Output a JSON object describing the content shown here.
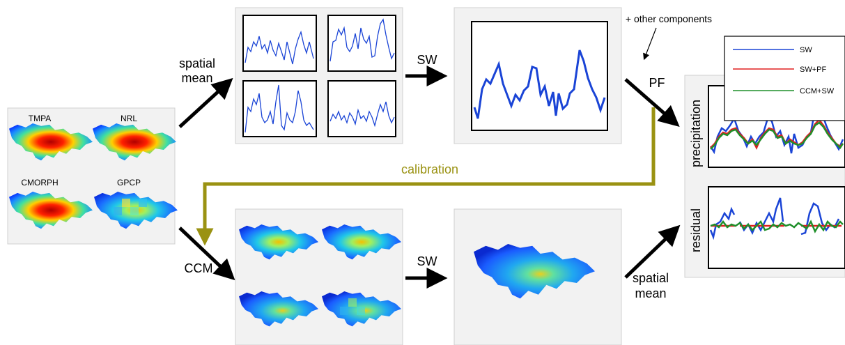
{
  "inputs": {
    "products": [
      "TMPA",
      "NRL",
      "CMORPH",
      "GPCP"
    ]
  },
  "labels": {
    "spatial_mean_top_1": "spatial",
    "spatial_mean_top_2": "mean",
    "sw_top": "SW",
    "sw_bottom": "SW",
    "pf": "PF",
    "other_components": "+ other components",
    "calibration": "calibration",
    "ccm": "CCM",
    "spatial_mean_bottom_1": "spatial",
    "spatial_mean_bottom_2": "mean",
    "precipitation_axis": "precipitation",
    "residual_axis": "residual"
  },
  "legend": {
    "entries": [
      {
        "label": "SW",
        "color": "#1a44d6"
      },
      {
        "label": "SW+PF",
        "color": "#e02020"
      },
      {
        "label": "CCM+SW",
        "color": "#1f8f2a"
      }
    ]
  },
  "colors": {
    "calibration": "#9a9212",
    "series_blue": "#1a44d6",
    "series_red": "#e02020",
    "series_green": "#1f8f2a"
  },
  "icons": {
    "maps": "precipitation-map-icon",
    "timeseries": "timeseries-sparkline-icon"
  }
}
